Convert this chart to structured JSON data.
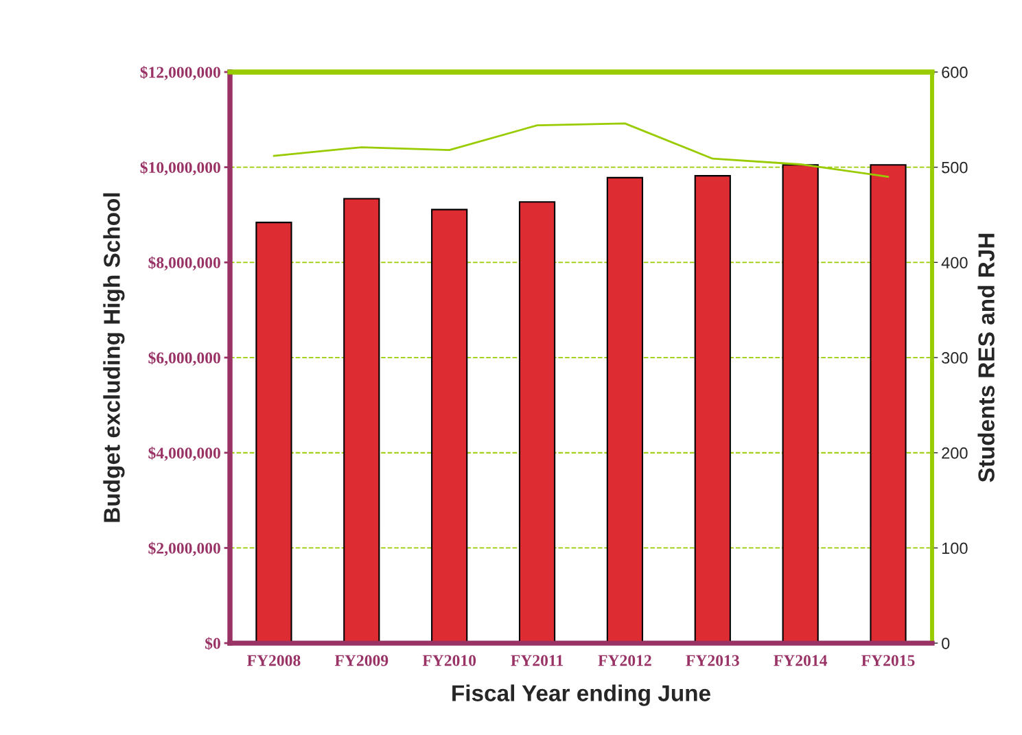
{
  "chart_data": {
    "type": "bar",
    "xlabel": "Fiscal Year ending June",
    "ylabel": "Budget excluding High School",
    "y2label": "Students RES and RJH",
    "categories": [
      "FY2008",
      "FY2009",
      "FY2010",
      "FY2011",
      "FY2012",
      "FY2013",
      "FY2014",
      "FY2015"
    ],
    "series": [
      {
        "color": "#dd2c32",
        "values": [
          8840000,
          9340000,
          9110000,
          9270000,
          9780000,
          9820000,
          10050000,
          10050000
        ]
      },
      {
        "type": "line",
        "axis": "y2",
        "color": "#99cc00",
        "values": [
          512,
          521,
          518,
          544,
          546,
          509,
          503,
          490
        ]
      }
    ],
    "ylim": [
      0,
      12000000
    ],
    "yticks": [
      {
        "value": 0,
        "label": "$0"
      },
      {
        "value": 2000000,
        "label": "$2,000,000"
      },
      {
        "value": 4000000,
        "label": "$4,000,000"
      },
      {
        "value": 6000000,
        "label": "$6,000,000"
      },
      {
        "value": 8000000,
        "label": "$8,000,000"
      },
      {
        "value": 10000000,
        "label": "$10,000,000"
      },
      {
        "value": 12000000,
        "label": "$12,000,000"
      }
    ],
    "y2lim": [
      0,
      600
    ],
    "y2ticks": [
      0,
      100,
      200,
      300,
      400,
      500,
      600
    ],
    "grid": "y",
    "marker": "none",
    "line_style": "solid"
  }
}
